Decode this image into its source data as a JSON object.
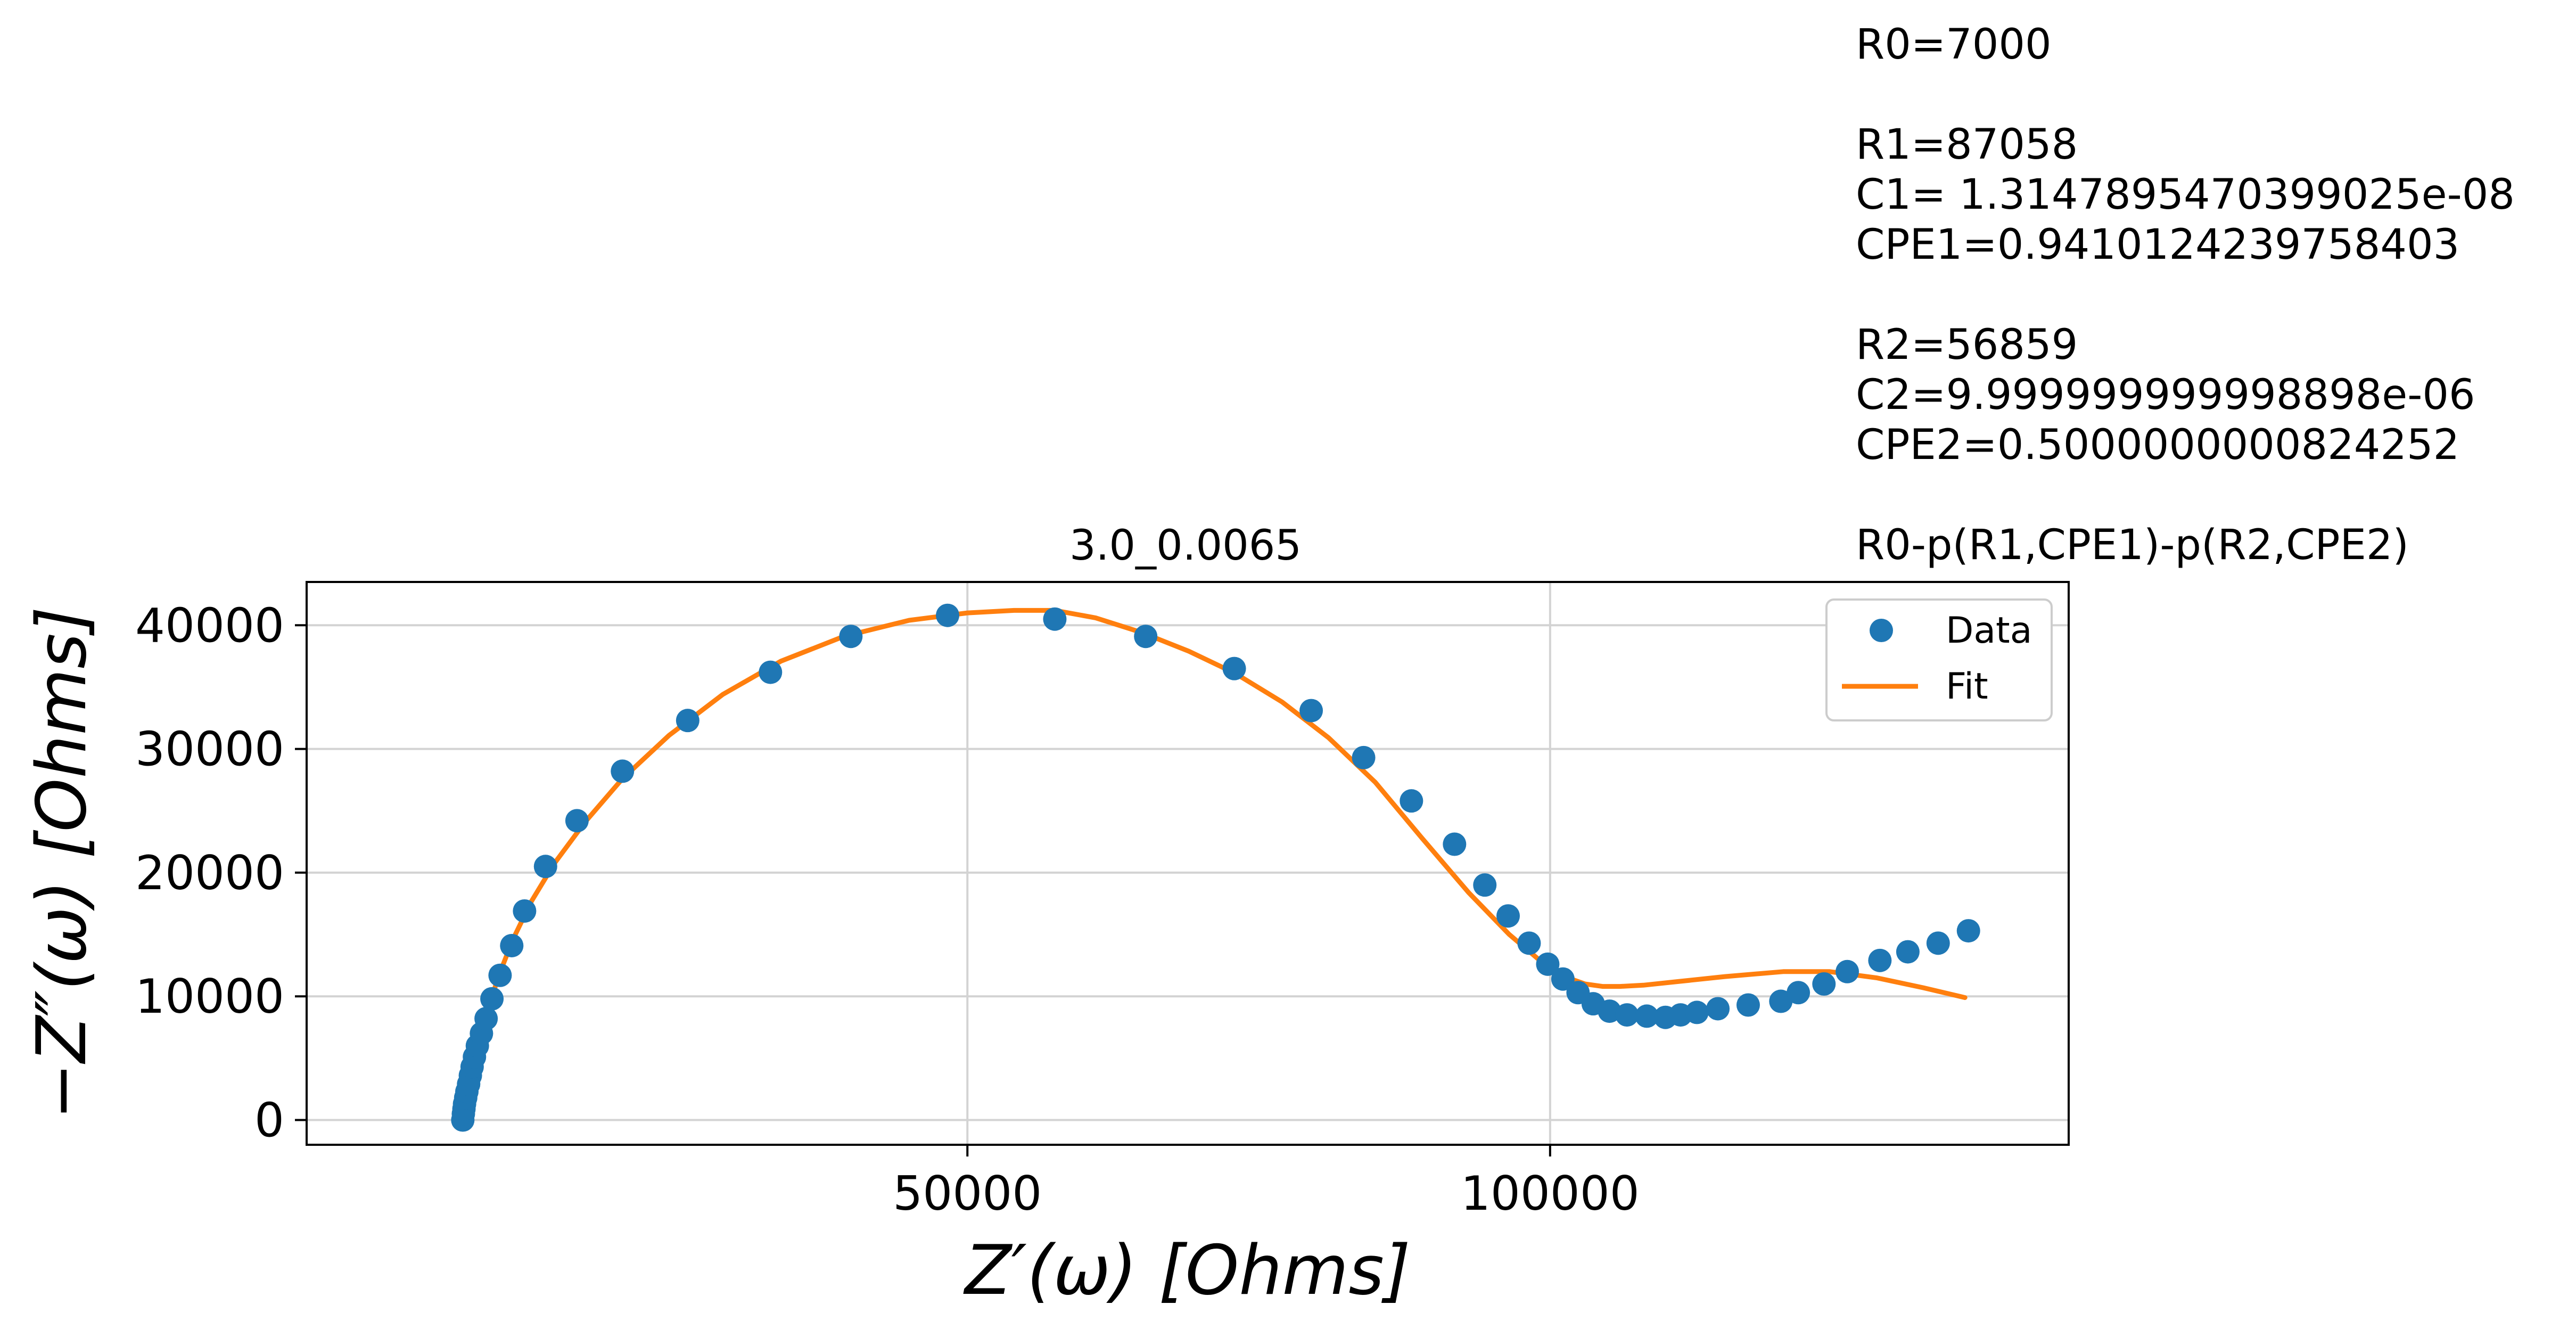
{
  "chart_data": {
    "type": "scatter",
    "title": "3.0_0.0065",
    "xlabel": "Z′(ω) [Ohms]",
    "ylabel": "−Z″(ω) [Ohms]",
    "xlim": [
      -6700,
      144500
    ],
    "ylim": [
      -2000,
      43500
    ],
    "x_ticks": [
      50000,
      100000
    ],
    "x_tick_labels": [
      "50000",
      "100000"
    ],
    "y_ticks": [
      0,
      10000,
      20000,
      30000,
      40000
    ],
    "y_tick_labels": [
      "0",
      "10000",
      "20000",
      "30000",
      "40000"
    ],
    "grid": true,
    "legend_position": "top-right",
    "colors": {
      "data": "#1f77b4",
      "fit": "#ff7f0e",
      "grid": "#d3d3d3"
    },
    "series": [
      {
        "name": "Data",
        "kind": "scatter",
        "x": [
          6700,
          6750,
          6800,
          6850,
          6950,
          7050,
          7200,
          7350,
          7500,
          7700,
          7950,
          8300,
          8700,
          9200,
          9900,
          10900,
          12000,
          13800,
          16500,
          20400,
          26000,
          33100,
          40000,
          48300,
          57500,
          65300,
          72900,
          79500,
          84000,
          88100,
          91800,
          94400,
          96400,
          98200,
          99800,
          101100,
          102400,
          103700,
          105100,
          106600,
          108300,
          109900,
          111200,
          112600,
          114400,
          117000,
          119800,
          121300,
          123500,
          125500,
          128300,
          130700,
          133300,
          135900
        ],
        "y": [
          0,
          500,
          900,
          1300,
          1800,
          2300,
          2900,
          3600,
          4300,
          5100,
          6000,
          7000,
          8200,
          9800,
          11700,
          14100,
          16900,
          20500,
          24200,
          28200,
          32300,
          36200,
          39100,
          40800,
          40500,
          39100,
          36500,
          33100,
          29300,
          25800,
          22300,
          19000,
          16500,
          14300,
          12600,
          11400,
          10300,
          9400,
          8800,
          8500,
          8400,
          8300,
          8500,
          8700,
          9000,
          9300,
          9600,
          10300,
          11000,
          12000,
          12900,
          13600,
          14300,
          15300
        ]
      },
      {
        "name": "Fit",
        "kind": "line",
        "x": [
          6700,
          7000,
          7400,
          8000,
          8800,
          9800,
          11000,
          12600,
          14600,
          17200,
          20400,
          24400,
          29000,
          34000,
          39400,
          45000,
          50000,
          54000,
          57500,
          61000,
          65000,
          69000,
          73000,
          77000,
          81000,
          85000,
          89000,
          93000,
          96500,
          99500,
          101500,
          103000,
          104500,
          106000,
          108000,
          111000,
          115000,
          120000,
          124000,
          128000,
          132000,
          135600
        ],
        "y": [
          0,
          1500,
          3500,
          6000,
          8800,
          11700,
          14600,
          17700,
          20800,
          24100,
          27600,
          31100,
          34400,
          37100,
          39100,
          40400,
          41000,
          41200,
          41200,
          40600,
          39400,
          37900,
          36100,
          33800,
          30900,
          27300,
          22800,
          18400,
          15000,
          12600,
          11500,
          11000,
          10800,
          10800,
          10900,
          11200,
          11600,
          12000,
          12000,
          11500,
          10700,
          9900
        ]
      }
    ],
    "legend": [
      "Data",
      "Fit"
    ],
    "annotation_lines": [
      "R0=7000",
      "",
      "R1=87058",
      "C1= 1.3147895470399025e-08",
      "CPE1=0.9410124239758403",
      "",
      "R2=56859",
      "C2=9.999999999998898e-06",
      "CPE2=0.5000000000824252",
      "",
      "R0-p(R1,CPE1)-p(R2,CPE2)"
    ]
  }
}
